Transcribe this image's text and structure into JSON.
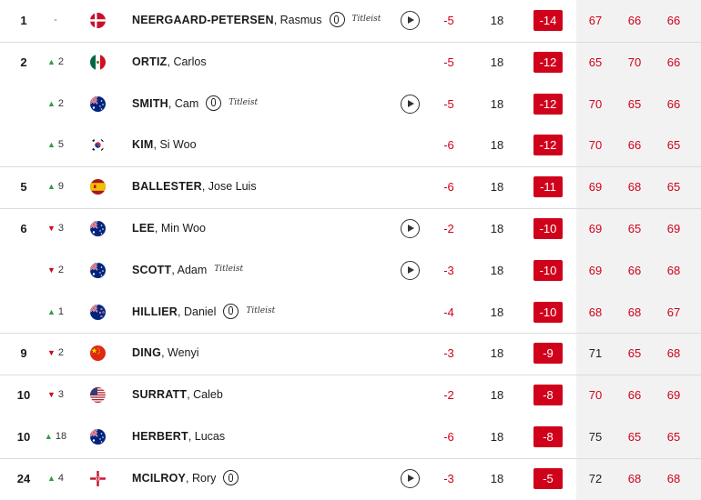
{
  "players": [
    {
      "pos": "1",
      "move_dir": "none",
      "move": "-",
      "flag": "dk",
      "surname": "NEERGAARD-PETERSEN",
      "first": "Rasmus",
      "o_badge": true,
      "titleist": true,
      "video": true,
      "today": "-5",
      "thru": "18",
      "total": "-14",
      "rounds": [
        "67",
        "66",
        "66"
      ],
      "round_under": [
        true,
        true,
        true
      ],
      "sep": false
    },
    {
      "pos": "2",
      "move_dir": "up",
      "move": "2",
      "flag": "mx",
      "surname": "ORTIZ",
      "first": "Carlos",
      "o_badge": false,
      "titleist": false,
      "video": false,
      "today": "-5",
      "thru": "18",
      "total": "-12",
      "rounds": [
        "65",
        "70",
        "66"
      ],
      "round_under": [
        true,
        true,
        true
      ],
      "sep": true
    },
    {
      "pos": "",
      "move_dir": "up",
      "move": "2",
      "flag": "au",
      "surname": "SMITH",
      "first": "Cam",
      "o_badge": true,
      "titleist": true,
      "video": true,
      "today": "-5",
      "thru": "18",
      "total": "-12",
      "rounds": [
        "70",
        "65",
        "66"
      ],
      "round_under": [
        true,
        true,
        true
      ],
      "sep": false
    },
    {
      "pos": "",
      "move_dir": "up",
      "move": "5",
      "flag": "kr",
      "surname": "KIM",
      "first": "Si Woo",
      "o_badge": false,
      "titleist": false,
      "video": false,
      "today": "-6",
      "thru": "18",
      "total": "-12",
      "rounds": [
        "70",
        "66",
        "65"
      ],
      "round_under": [
        true,
        true,
        true
      ],
      "sep": false
    },
    {
      "pos": "5",
      "move_dir": "up",
      "move": "9",
      "flag": "es",
      "surname": "BALLESTER",
      "first": "Jose Luis",
      "o_badge": false,
      "titleist": false,
      "video": false,
      "today": "-6",
      "thru": "18",
      "total": "-11",
      "rounds": [
        "69",
        "68",
        "65"
      ],
      "round_under": [
        true,
        true,
        true
      ],
      "sep": true
    },
    {
      "pos": "6",
      "move_dir": "down",
      "move": "3",
      "flag": "au",
      "surname": "LEE",
      "first": "Min Woo",
      "o_badge": false,
      "titleist": false,
      "video": true,
      "today": "-2",
      "thru": "18",
      "total": "-10",
      "rounds": [
        "69",
        "65",
        "69"
      ],
      "round_under": [
        true,
        true,
        true
      ],
      "sep": true
    },
    {
      "pos": "",
      "move_dir": "down",
      "move": "2",
      "flag": "au",
      "surname": "SCOTT",
      "first": "Adam",
      "o_badge": false,
      "titleist": true,
      "video": true,
      "today": "-3",
      "thru": "18",
      "total": "-10",
      "rounds": [
        "69",
        "66",
        "68"
      ],
      "round_under": [
        true,
        true,
        true
      ],
      "sep": false
    },
    {
      "pos": "",
      "move_dir": "up",
      "move": "1",
      "flag": "nz",
      "surname": "HILLIER",
      "first": "Daniel",
      "o_badge": true,
      "titleist": true,
      "video": false,
      "today": "-4",
      "thru": "18",
      "total": "-10",
      "rounds": [
        "68",
        "68",
        "67"
      ],
      "round_under": [
        true,
        true,
        true
      ],
      "sep": false
    },
    {
      "pos": "9",
      "move_dir": "down",
      "move": "2",
      "flag": "cn",
      "surname": "DING",
      "first": "Wenyi",
      "o_badge": false,
      "titleist": false,
      "video": false,
      "today": "-3",
      "thru": "18",
      "total": "-9",
      "rounds": [
        "71",
        "65",
        "68"
      ],
      "round_under": [
        false,
        true,
        true
      ],
      "sep": true
    },
    {
      "pos": "10",
      "move_dir": "down",
      "move": "3",
      "flag": "us",
      "surname": "SURRATT",
      "first": "Caleb",
      "o_badge": false,
      "titleist": false,
      "video": false,
      "today": "-2",
      "thru": "18",
      "total": "-8",
      "rounds": [
        "70",
        "66",
        "69"
      ],
      "round_under": [
        true,
        true,
        true
      ],
      "sep": true
    },
    {
      "pos": "10",
      "move_dir": "up",
      "move": "18",
      "flag": "au",
      "surname": "HERBERT",
      "first": "Lucas",
      "o_badge": false,
      "titleist": false,
      "video": false,
      "today": "-6",
      "thru": "18",
      "total": "-8",
      "rounds": [
        "75",
        "65",
        "65"
      ],
      "round_under": [
        false,
        true,
        true
      ],
      "sep": false
    },
    {
      "pos": "24",
      "move_dir": "up",
      "move": "4",
      "flag": "ni",
      "surname": "MCILROY",
      "first": "Rory",
      "o_badge": true,
      "titleist": false,
      "video": true,
      "today": "-3",
      "thru": "18",
      "total": "-5",
      "rounds": [
        "72",
        "68",
        "68"
      ],
      "round_under": [
        false,
        true,
        true
      ],
      "sep": true
    }
  ],
  "titleist_text": "Titleist",
  "colors": {
    "accent": "#d0021b",
    "up": "#2e9e3e",
    "rounds_bg": "#f2f2f2"
  }
}
